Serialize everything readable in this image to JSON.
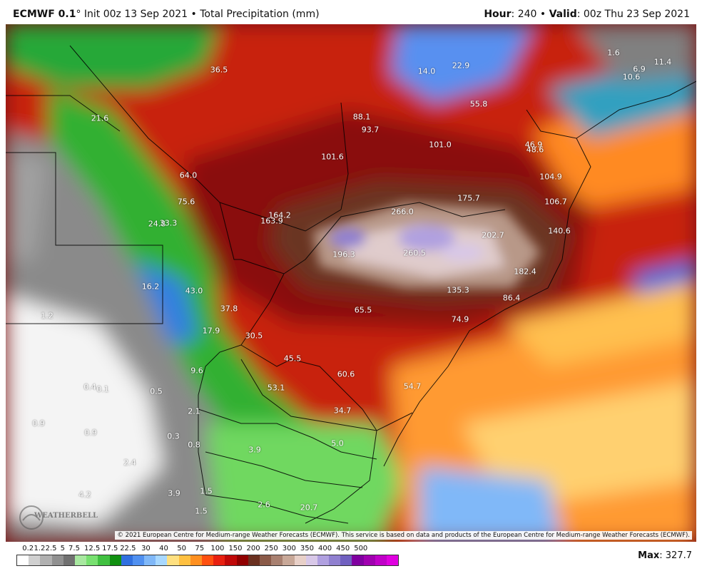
{
  "header": {
    "model": "ECMWF 0.1",
    "init": "° Init 00z 13 Sep 2021 • Total Precipitation (mm)",
    "hour_label": "Hour",
    "hour_value": ": 240 • ",
    "valid_label": "Valid",
    "valid_value": ": 00z Thu 23 Sep 2021"
  },
  "map": {
    "copyright": "© 2021 European Centre for Medium-range Weather Forecasts (ECMWF). This service is based on data and products of the European Centre for Medium-range Weather Forecasts (ECMWF).",
    "logo_text": "WEATHERBELL",
    "labels": [
      "36.5",
      "14.0",
      "22.9",
      "1.6",
      "11.4",
      "6.9",
      "10.6",
      "21.6",
      "88.1",
      "93.7",
      "55.8",
      "101.0",
      "101.6",
      "46.9",
      "48.6",
      "64.0",
      "104.9",
      "75.6",
      "175.7",
      "106.7",
      "266.0",
      "24.8",
      "33.3",
      "164.2",
      "163.9",
      "202.7",
      "140.6",
      "196.3",
      "260.5",
      "182.4",
      "16.2",
      "43.0",
      "135.3",
      "86.4",
      "37.8",
      "65.5",
      "1.2",
      "17.9",
      "30.5",
      "74.9",
      "45.5",
      "9.6",
      "60.6",
      "0.4",
      "0.1",
      "0.5",
      "53.1",
      "54.7",
      "2.1",
      "34.7",
      "0.9",
      "0.9",
      "0.3",
      "0.8",
      "3.9",
      "5.0",
      "2.4",
      "4.2",
      "3.9",
      "1.5",
      "1.5",
      "2.6",
      "20.7"
    ]
  },
  "colorbar": {
    "ticks": [
      "0.2",
      "1.2",
      "2.5",
      "5",
      "7.5",
      "12.5",
      "17.5",
      "22.5",
      "30",
      "40",
      "50",
      "75",
      "100",
      "150",
      "200",
      "250",
      "300",
      "350",
      "400",
      "450",
      "500"
    ],
    "colors": [
      "#ffffff",
      "#d0d0d0",
      "#b0b0b0",
      "#909090",
      "#707070",
      "#a8e8a0",
      "#78e070",
      "#40c040",
      "#109010",
      "#3070e0",
      "#5090f0",
      "#80b8f8",
      "#a8d8ff",
      "#ffe080",
      "#ffc040",
      "#ff9020",
      "#ff5010",
      "#e82010",
      "#c00808",
      "#900000",
      "#6a3020",
      "#8a5a48",
      "#a88070",
      "#c8a898",
      "#e8d0c8",
      "#d8c8e8",
      "#b0a0e0",
      "#9080d0",
      "#7060c0",
      "#8000a0",
      "#a000b0",
      "#c000c8",
      "#e000e0"
    ],
    "max_label": "Max",
    "max_value": ": 327.7"
  }
}
